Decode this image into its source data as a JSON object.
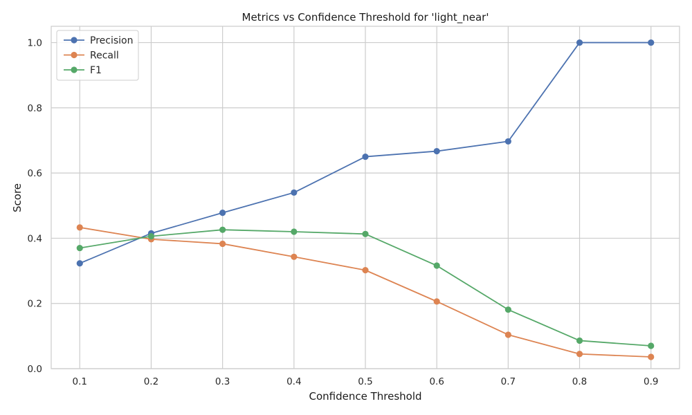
{
  "chart_data": {
    "type": "line",
    "title": "Metrics vs Confidence Threshold for 'light_near'",
    "xlabel": "Confidence Threshold",
    "ylabel": "Score",
    "x": [
      0.1,
      0.2,
      0.3,
      0.4,
      0.5,
      0.6,
      0.7,
      0.8,
      0.9
    ],
    "xlim": [
      0.06,
      0.94
    ],
    "ylim": [
      0.0,
      1.05
    ],
    "xticks": [
      "0.1",
      "0.2",
      "0.3",
      "0.4",
      "0.5",
      "0.6",
      "0.7",
      "0.8",
      "0.9"
    ],
    "yticks": [
      "0.0",
      "0.2",
      "0.4",
      "0.6",
      "0.8",
      "1.0"
    ],
    "grid": true,
    "legend_position": "top-left",
    "series": [
      {
        "name": "Precision",
        "color": "#4c72b0",
        "values": [
          0.323,
          0.415,
          0.478,
          0.54,
          0.65,
          0.667,
          0.697,
          1.0,
          1.0
        ]
      },
      {
        "name": "Recall",
        "color": "#dd8452",
        "values": [
          0.433,
          0.397,
          0.383,
          0.343,
          0.302,
          0.206,
          0.104,
          0.045,
          0.036
        ]
      },
      {
        "name": "F1",
        "color": "#55a868",
        "values": [
          0.37,
          0.406,
          0.426,
          0.42,
          0.413,
          0.316,
          0.181,
          0.086,
          0.07
        ]
      }
    ]
  }
}
